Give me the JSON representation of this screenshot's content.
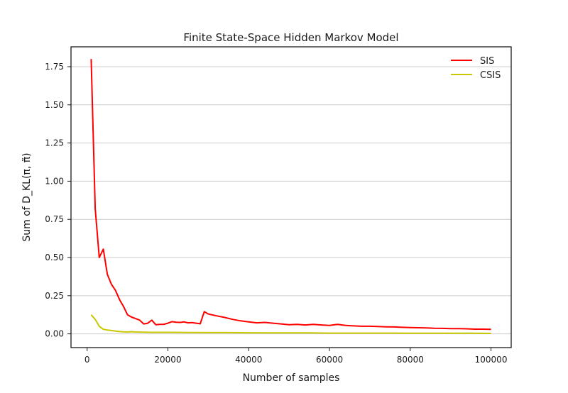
{
  "chart_data": {
    "type": "line",
    "title": "Finite State-Space Hidden Markov Model",
    "xlabel": "Number of samples",
    "ylabel": "Sum of D_KL(π, π̃)",
    "xlim": [
      -4000,
      105000
    ],
    "ylim": [
      -0.09,
      1.88
    ],
    "xticks": [
      0,
      20000,
      40000,
      60000,
      80000,
      100000
    ],
    "xtick_labels": [
      "0",
      "20000",
      "40000",
      "60000",
      "80000",
      "100000"
    ],
    "yticks": [
      0.0,
      0.25,
      0.5,
      0.75,
      1.0,
      1.25,
      1.5,
      1.75
    ],
    "ytick_labels": [
      "0.00",
      "0.25",
      "0.50",
      "0.75",
      "1.00",
      "1.25",
      "1.50",
      "1.75"
    ],
    "grid": "horizontal",
    "legend_position": "top-right",
    "series": [
      {
        "name": "SIS",
        "color": "#ff0000",
        "x": [
          1000,
          2000,
          3000,
          4000,
          5000,
          6000,
          7000,
          8000,
          9000,
          10000,
          11000,
          12000,
          13000,
          14000,
          15000,
          16000,
          17000,
          18000,
          19000,
          20000,
          21000,
          22000,
          23000,
          24000,
          25000,
          26000,
          27000,
          28000,
          29000,
          30000,
          32000,
          34000,
          36000,
          38000,
          40000,
          42000,
          44000,
          46000,
          48000,
          50000,
          52000,
          54000,
          56000,
          58000,
          60000,
          62000,
          64000,
          66000,
          68000,
          70000,
          72000,
          74000,
          76000,
          78000,
          80000,
          82000,
          84000,
          86000,
          88000,
          90000,
          92000,
          94000,
          96000,
          98000,
          100000
        ],
        "y": [
          1.8,
          0.82,
          0.5,
          0.555,
          0.39,
          0.325,
          0.285,
          0.225,
          0.18,
          0.125,
          0.11,
          0.1,
          0.09,
          0.065,
          0.07,
          0.09,
          0.06,
          0.062,
          0.063,
          0.07,
          0.08,
          0.076,
          0.075,
          0.078,
          0.072,
          0.074,
          0.07,
          0.066,
          0.145,
          0.13,
          0.118,
          0.108,
          0.095,
          0.085,
          0.078,
          0.072,
          0.075,
          0.07,
          0.065,
          0.06,
          0.062,
          0.058,
          0.062,
          0.058,
          0.055,
          0.062,
          0.055,
          0.052,
          0.05,
          0.05,
          0.048,
          0.046,
          0.045,
          0.043,
          0.041,
          0.04,
          0.039,
          0.037,
          0.036,
          0.034,
          0.034,
          0.033,
          0.031,
          0.031,
          0.03
        ]
      },
      {
        "name": "CSIS",
        "color": "#c8c800",
        "x": [
          1000,
          2000,
          3000,
          4000,
          5000,
          6000,
          7000,
          8000,
          9000,
          10000,
          11000,
          12000,
          14000,
          16000,
          18000,
          20000,
          25000,
          30000,
          35000,
          40000,
          45000,
          50000,
          55000,
          60000,
          65000,
          70000,
          75000,
          80000,
          85000,
          90000,
          95000,
          100000
        ],
        "y": [
          0.125,
          0.095,
          0.05,
          0.03,
          0.025,
          0.022,
          0.018,
          0.015,
          0.013,
          0.012,
          0.014,
          0.012,
          0.011,
          0.01,
          0.01,
          0.01,
          0.009,
          0.008,
          0.008,
          0.007,
          0.006,
          0.006,
          0.006,
          0.005,
          0.005,
          0.005,
          0.005,
          0.004,
          0.004,
          0.004,
          0.004,
          0.003
        ]
      }
    ]
  }
}
